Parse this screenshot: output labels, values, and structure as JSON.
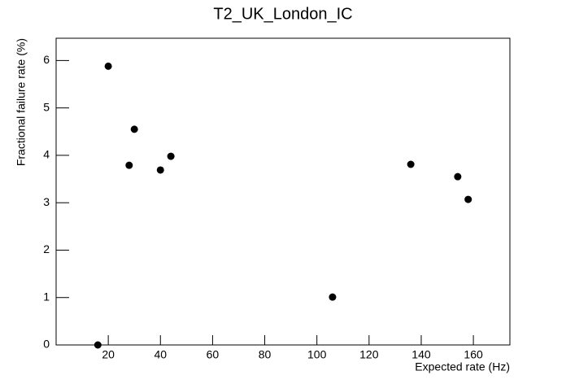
{
  "chart_data": {
    "type": "scatter",
    "title": "T2_UK_London_IC",
    "x_label": "Expected rate (Hz)",
    "y_label": "Fractional failure rate (%)",
    "x": [
      16,
      20,
      28,
      30,
      40,
      44,
      106,
      136,
      154,
      158
    ],
    "values": [
      0,
      5.88,
      3.79,
      4.55,
      3.69,
      3.98,
      1.01,
      3.81,
      3.55,
      3.07
    ],
    "color": "#000000",
    "xlim": [
      0,
      174
    ],
    "xticks": [
      20,
      40,
      60,
      80,
      100,
      120,
      140,
      160
    ],
    "ylim": [
      0,
      6.47
    ],
    "yticks": [
      0,
      1,
      2,
      3,
      4,
      5,
      6
    ]
  }
}
